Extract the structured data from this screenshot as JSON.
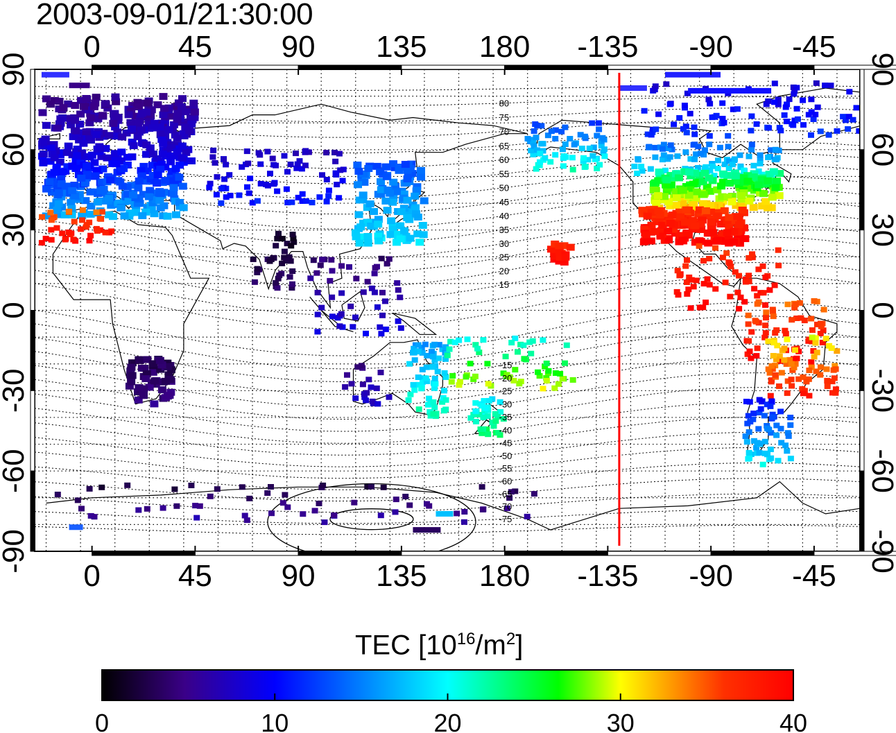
{
  "title": "2003-09-01/21:30:00",
  "map": {
    "lon_ticks": [
      "0",
      "45",
      "90",
      "135",
      "180",
      "-135",
      "-90",
      "-45"
    ],
    "lat_ticks": [
      "90",
      "60",
      "30",
      "0",
      "-30",
      "-60",
      "-90"
    ],
    "lon_range": [
      -25,
      335
    ],
    "lat_range": [
      -90,
      90
    ],
    "grid": "dotted, 10 degree spacing",
    "projection": "cylindrical equidistant (plate carree)",
    "terminator_line": {
      "lon": -130,
      "color": "#ff0000",
      "style": "solid vertical"
    },
    "magnetic_contours": {
      "labels_north": [
        "80",
        "75",
        "70",
        "65",
        "60",
        "55",
        "50",
        "45",
        "40",
        "35",
        "30",
        "25",
        "20",
        "15"
      ],
      "labels_south": [
        "-15",
        "-20",
        "-25",
        "-30",
        "-35",
        "-40",
        "-45",
        "-50",
        "-55",
        "-60",
        "-65",
        "-70",
        "-75"
      ]
    },
    "tec_clusters": [
      {
        "region": "Europe north",
        "tec": 8
      },
      {
        "region": "Europe south",
        "tec": 13
      },
      {
        "region": "Iberia/N. Africa",
        "tec": 38
      },
      {
        "region": "Central Asia",
        "tec": 9
      },
      {
        "region": "India",
        "tec": 3
      },
      {
        "region": "East Asia",
        "tec": 16
      },
      {
        "region": "SE Asia",
        "tec": 7
      },
      {
        "region": "Southern Africa",
        "tec": 4
      },
      {
        "region": "Australia east",
        "tec": 20
      },
      {
        "region": "Australia west",
        "tec": 6
      },
      {
        "region": "New Zealand",
        "tec": 22
      },
      {
        "region": "SW Pacific",
        "tec": 24
      },
      {
        "region": "Hawaii",
        "tec": 38
      },
      {
        "region": "Alaska",
        "tec": 18
      },
      {
        "region": "Canada",
        "tec": 18
      },
      {
        "region": "Arctic Canada/Greenland",
        "tec": 10
      },
      {
        "region": "USA north",
        "tec": 26
      },
      {
        "region": "USA south",
        "tec": 38
      },
      {
        "region": "Central America/Caribbean",
        "tec": 39
      },
      {
        "region": "South America north",
        "tec": 38
      },
      {
        "region": "Brazil",
        "tec": 36
      },
      {
        "region": "Southern South America",
        "tec": 15
      },
      {
        "region": "Antarctica",
        "tec": 4
      }
    ]
  },
  "colorbar": {
    "label": "TEC  [10",
    "label_sup1": "16",
    "label_mid": "/m",
    "label_sup2": "2",
    "label_end": "]",
    "ticks": [
      "0",
      "10",
      "20",
      "30",
      "40"
    ],
    "range": [
      0,
      40
    ],
    "colormap": [
      "#000000",
      "#3a0088",
      "#0000ff",
      "#00ffff",
      "#00ff00",
      "#ffff00",
      "#ff0000"
    ]
  }
}
